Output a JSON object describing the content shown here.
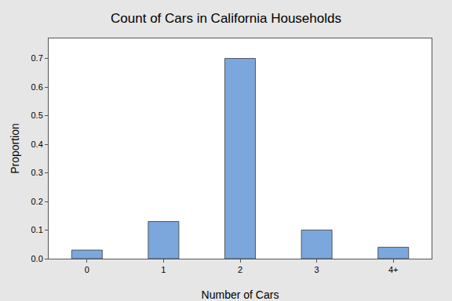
{
  "chart_data": {
    "type": "bar",
    "title": "Count of Cars in California Households",
    "x_label": "Number of Cars",
    "y_label": "Proportion",
    "categories": [
      "0",
      "1",
      "2",
      "3",
      "4+"
    ],
    "values": [
      0.03,
      0.13,
      0.7,
      0.1,
      0.04
    ],
    "color": "#7ba7dc",
    "ylim": [
      0,
      0.77
    ],
    "yticks": [
      {
        "value": 0,
        "label": "0.0"
      },
      0.1,
      0.2,
      0.3,
      0.4,
      0.5,
      0.6,
      0.7
    ],
    "grid": false
  }
}
